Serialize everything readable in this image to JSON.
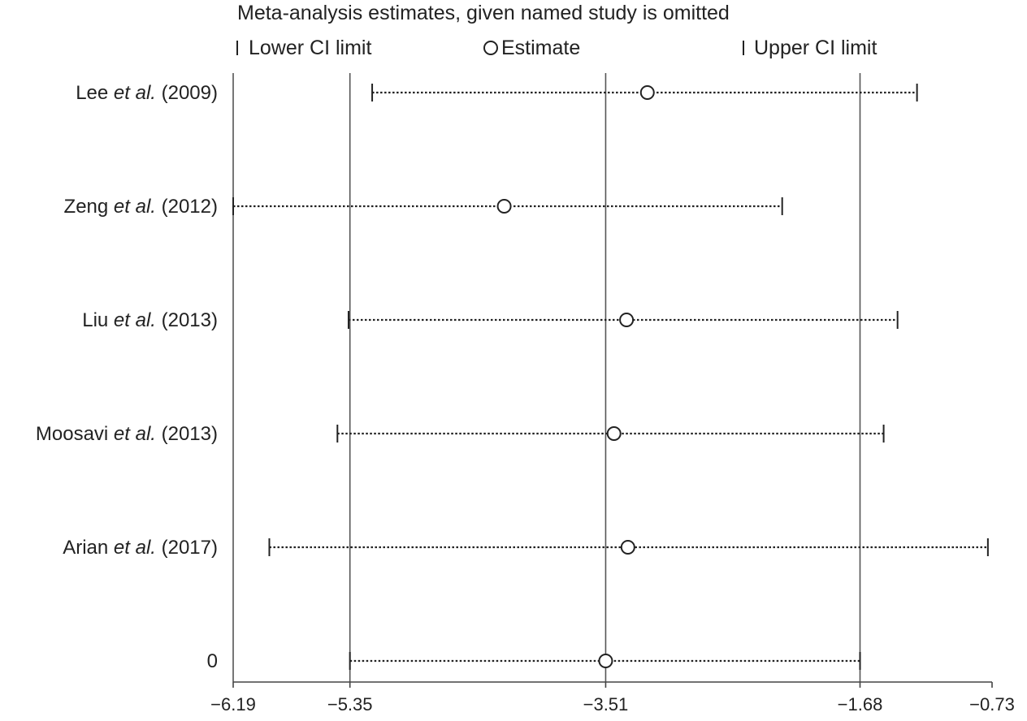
{
  "chart_data": {
    "type": "forest",
    "title": "Meta-analysis estimates, given named study is omitted",
    "legend": {
      "placement": "top",
      "items": [
        {
          "symbol": "bar",
          "label": "Lower CI limit"
        },
        {
          "symbol": "circle",
          "label": "Estimate"
        },
        {
          "symbol": "bar",
          "label": "Upper CI limit"
        }
      ]
    },
    "xlim": [
      -6.19,
      -0.73
    ],
    "xticks": [
      -6.19,
      -5.35,
      -3.51,
      -1.68,
      -0.73
    ],
    "xtick_labels": [
      "−6.19",
      "−5.35",
      "−3.51",
      "−1.68",
      "−0.73"
    ],
    "reference_lines": [
      -6.19,
      -5.35,
      -3.51,
      -1.68
    ],
    "studies": [
      {
        "name": "Lee",
        "etal": "et al.",
        "year": "(2009)",
        "lower": -5.19,
        "estimate": -3.21,
        "upper": -1.27
      },
      {
        "name": "Zeng",
        "etal": "et al.",
        "year": "(2012)",
        "lower": -6.19,
        "estimate": -4.24,
        "upper": -2.24
      },
      {
        "name": "Liu",
        "etal": "et al.",
        "year": "(2013)",
        "lower": -5.36,
        "estimate": -3.36,
        "upper": -1.41
      },
      {
        "name": "Moosavi",
        "etal": "et al.",
        "year": "(2013)",
        "lower": -5.44,
        "estimate": -3.45,
        "upper": -1.51
      },
      {
        "name": "Arian",
        "etal": "et al.",
        "year": "(2017)",
        "lower": -5.93,
        "estimate": -3.35,
        "upper": -0.76
      },
      {
        "name": "0",
        "etal": "",
        "year": "",
        "lower": -5.35,
        "estimate": -3.51,
        "upper": -1.68
      }
    ]
  }
}
